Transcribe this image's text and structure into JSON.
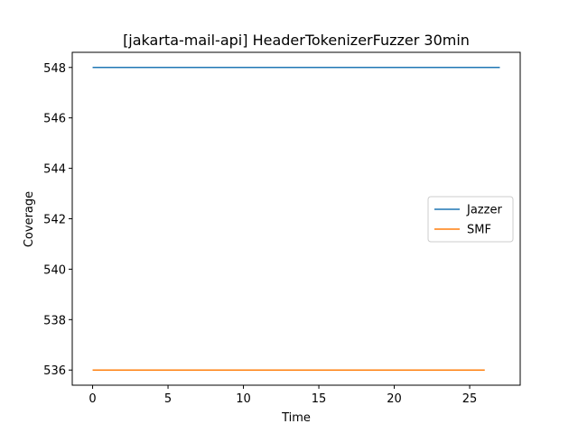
{
  "chart_data": {
    "type": "line",
    "title": "[jakarta-mail-api] HeaderTokenizerFuzzer 30min",
    "xlabel": "Time",
    "ylabel": "Coverage",
    "xlim": [
      -1.35,
      28.35
    ],
    "ylim": [
      535.4,
      548.6
    ],
    "xticks": [
      0,
      5,
      10,
      15,
      20,
      25
    ],
    "yticks": [
      536,
      538,
      540,
      542,
      544,
      546,
      548
    ],
    "grid": false,
    "legend_position": "center-right",
    "series": [
      {
        "name": "Jazzer",
        "color": "#1f77b4",
        "x": [
          0,
          27
        ],
        "y": [
          548,
          548
        ]
      },
      {
        "name": "SMF",
        "color": "#ff7f0e",
        "x": [
          0,
          26
        ],
        "y": [
          536,
          536
        ]
      }
    ]
  }
}
